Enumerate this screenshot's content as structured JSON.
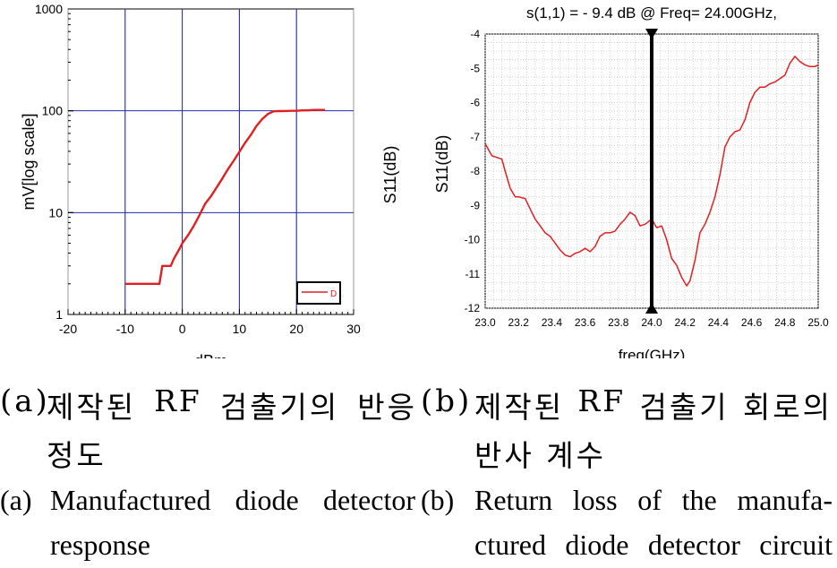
{
  "chart_data": [
    {
      "type": "line",
      "panel": "a",
      "title": "",
      "xlabel": "dBm",
      "ylabel": "mV[log scale]",
      "xlim": [
        -20,
        30
      ],
      "ylim": [
        1,
        1000
      ],
      "yscale": "log",
      "x_ticks": [
        "-20",
        "-10",
        "0",
        "10",
        "20",
        "30"
      ],
      "y_ticks": [
        "1",
        "10",
        "100",
        "1000"
      ],
      "legend": {
        "placement": "bottom-right",
        "entries": [
          "D"
        ]
      },
      "series": [
        {
          "name": "D",
          "color": "#e02020",
          "x": [
            -10,
            -4,
            -3.5,
            -2,
            -1.5,
            -0.5,
            0,
            1,
            2,
            3,
            4,
            5,
            6,
            7,
            8,
            9,
            10,
            11,
            12,
            13,
            14,
            15,
            16,
            17,
            18,
            19,
            20,
            21,
            22,
            23,
            24,
            25
          ],
          "y": [
            2.0,
            2.0,
            3.0,
            3.0,
            3.5,
            4.4,
            5.0,
            6.0,
            7.4,
            9.4,
            12.2,
            14.4,
            17.6,
            21.6,
            26.7,
            32.3,
            39.5,
            48.5,
            58.0,
            71.0,
            83.0,
            93.0,
            99.0,
            99.3,
            99.6,
            100,
            100,
            101,
            101,
            102,
            102,
            102
          ]
        }
      ],
      "vlines": [
        -10,
        0,
        10,
        20
      ],
      "hlines": [
        10,
        100
      ]
    },
    {
      "type": "line",
      "panel": "b",
      "title": "s(1,1) = - 9.4 dB @ Freq= 24.00GHz,",
      "xlabel": "freq(GHz)",
      "ylabel": "S11(dB)",
      "outer_ylabel": "S11(dB)",
      "xlim": [
        23.0,
        25.0
      ],
      "ylim": [
        -12,
        -4
      ],
      "x_ticks": [
        "23.0",
        "23.2",
        "23.4",
        "23.6",
        "23.8",
        "24.0",
        "24.2",
        "24.4",
        "24.6",
        "24.8",
        "25.0"
      ],
      "y_ticks": [
        "-4",
        "-5",
        "-6",
        "-7",
        "-8",
        "-9",
        "-10",
        "-11",
        "-12"
      ],
      "marker": {
        "x": 24.0,
        "y": -9.4
      },
      "series": [
        {
          "name": "S11",
          "color": "#e02020",
          "x": [
            23.0,
            23.04,
            23.07,
            23.1,
            23.12,
            23.15,
            23.18,
            23.2,
            23.24,
            23.27,
            23.3,
            23.33,
            23.36,
            23.39,
            23.42,
            23.45,
            23.48,
            23.51,
            23.54,
            23.57,
            23.6,
            23.63,
            23.66,
            23.69,
            23.72,
            23.75,
            23.78,
            23.81,
            23.84,
            23.87,
            23.9,
            23.93,
            23.96,
            24.0,
            24.03,
            24.06,
            24.09,
            24.12,
            24.15,
            24.18,
            24.21,
            24.23,
            24.26,
            24.29,
            24.32,
            24.35,
            24.38,
            24.41,
            24.44,
            24.47,
            24.5,
            24.53,
            24.56,
            24.59,
            24.62,
            24.65,
            24.68,
            24.71,
            24.74,
            24.77,
            24.8,
            24.83,
            24.86,
            24.89,
            24.92,
            24.95,
            24.98,
            25.0
          ],
          "y": [
            -7.2,
            -7.55,
            -7.6,
            -7.65,
            -8.0,
            -8.5,
            -8.75,
            -8.75,
            -8.8,
            -9.1,
            -9.4,
            -9.6,
            -9.8,
            -9.9,
            -10.1,
            -10.3,
            -10.45,
            -10.5,
            -10.4,
            -10.35,
            -10.25,
            -10.35,
            -10.2,
            -9.9,
            -9.8,
            -9.8,
            -9.75,
            -9.55,
            -9.4,
            -9.2,
            -9.3,
            -9.6,
            -9.55,
            -9.4,
            -9.65,
            -9.6,
            -10.0,
            -10.55,
            -10.75,
            -11.1,
            -11.35,
            -11.2,
            -10.6,
            -9.8,
            -9.55,
            -9.2,
            -8.75,
            -8.1,
            -7.3,
            -7.0,
            -6.85,
            -6.8,
            -6.5,
            -6.0,
            -5.7,
            -5.55,
            -5.55,
            -5.45,
            -5.4,
            -5.3,
            -5.2,
            -4.85,
            -4.65,
            -4.8,
            -4.9,
            -4.95,
            -4.95,
            -4.9
          ]
        }
      ]
    }
  ],
  "captions": {
    "a": {
      "tag": "(a)",
      "ko_line1": [
        "제작된",
        "RF",
        "검출기의",
        "반응"
      ],
      "ko_line2": "정도",
      "en_line1": [
        "Manufactured",
        "diode",
        "detector"
      ],
      "en_line2": "response"
    },
    "b": {
      "tag": "(b)",
      "ko_line1": [
        "제작된",
        "RF",
        "검출기",
        "회로의"
      ],
      "ko_line2": "반사 계수",
      "en_line1": [
        "Return",
        "loss",
        "of",
        "the",
        "manufa-"
      ],
      "en_line2": [
        "ctured",
        "diode",
        "detector",
        "circuit"
      ]
    }
  }
}
